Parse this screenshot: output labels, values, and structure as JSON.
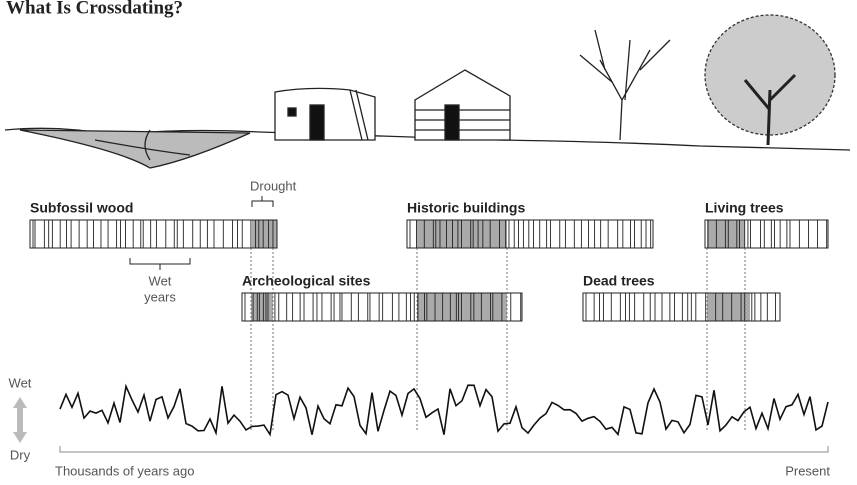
{
  "title": "What Is Crossdating?",
  "labels": {
    "drought": "Drought",
    "subfossil_wood": "Subfossil wood",
    "wet_years": [
      "Wet",
      "years"
    ],
    "historic_buildings": "Historic buildings",
    "living_trees": "Living trees",
    "archeological_sites": "Archeological sites",
    "dead_trees": "Dead trees"
  },
  "axis": {
    "wet": "Wet",
    "dry": "Dry",
    "start": "Thousands of years ago",
    "end": "Present"
  }
}
